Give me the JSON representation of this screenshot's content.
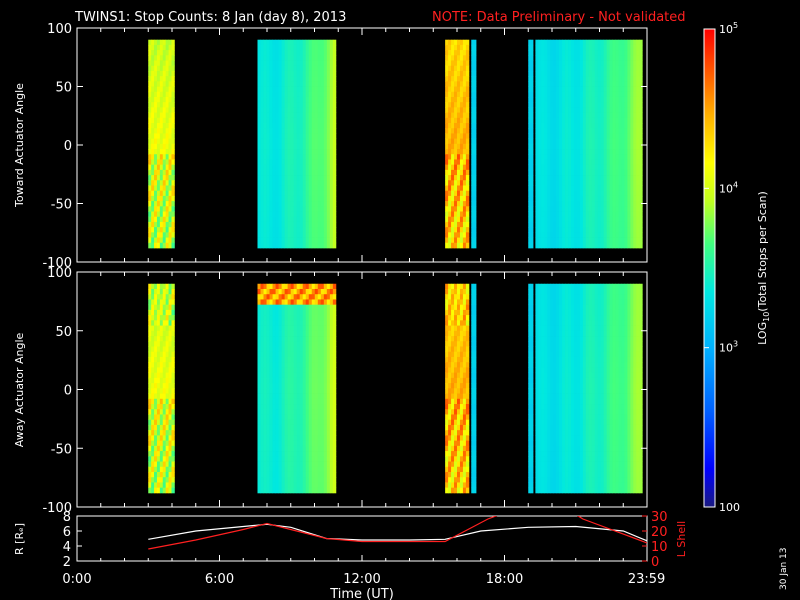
{
  "header": {
    "title": "TWINS1: Stop Counts:  8 Jan (day   8), 2013",
    "note": "NOTE: Data Preliminary - Not validated",
    "title_color": "#ffffff",
    "note_color": "#ff2020"
  },
  "footer_date": "30 Jan 13",
  "chart_data": [
    {
      "type": "heatmap",
      "panel": "toward",
      "ylabel": "Toward Actuator Angle",
      "ylim": [
        -100,
        100
      ],
      "yticks": [
        100,
        50,
        0,
        -50,
        -100
      ],
      "data_angle_range": [
        -88,
        90
      ],
      "data_blocks_hours": [
        {
          "start": 3.0,
          "end": 4.1,
          "log_level": 3.95,
          "pattern": "mixed_high"
        },
        {
          "start": 7.6,
          "end": 10.9,
          "log_level": 3.35,
          "pattern": "bands_rising"
        },
        {
          "start": 15.5,
          "end": 16.5,
          "log_level": 4.3,
          "pattern": "mixed_high"
        },
        {
          "start": 16.6,
          "end": 16.8,
          "log_level": 3.2,
          "pattern": "uniform"
        },
        {
          "start": 19.0,
          "end": 19.2,
          "log_level": 3.2,
          "pattern": "uniform"
        },
        {
          "start": 19.3,
          "end": 23.8,
          "log_level": 3.3,
          "pattern": "bands_rising"
        }
      ]
    },
    {
      "type": "heatmap",
      "panel": "away",
      "ylabel": "Away Actuator Angle",
      "ylim": [
        -100,
        100
      ],
      "yticks": [
        100,
        50,
        0,
        -50,
        -100
      ],
      "data_angle_range": [
        -88,
        90
      ],
      "data_blocks_hours": [
        {
          "start": 3.0,
          "end": 4.1,
          "log_level": 3.95,
          "pattern": "mixed_high"
        },
        {
          "start": 7.6,
          "end": 10.9,
          "log_level": 3.4,
          "pattern": "bands_rising_top_hot"
        },
        {
          "start": 15.5,
          "end": 16.5,
          "log_level": 4.3,
          "pattern": "mixed_high"
        },
        {
          "start": 16.6,
          "end": 16.8,
          "log_level": 3.2,
          "pattern": "uniform"
        },
        {
          "start": 19.0,
          "end": 19.2,
          "log_level": 3.2,
          "pattern": "uniform"
        },
        {
          "start": 19.3,
          "end": 23.8,
          "log_level": 3.3,
          "pattern": "bands_rising"
        }
      ]
    },
    {
      "type": "line",
      "panel": "ephemeris",
      "xlabel": "Time (UT)",
      "xlim": [
        0,
        24
      ],
      "xtick_labels": [
        "0:00",
        "6:00",
        "12:00",
        "18:00",
        "23:59"
      ],
      "xtick_hours": [
        0,
        6,
        12,
        18,
        23.983
      ],
      "ylabel_left": "R [Rₑ]",
      "ylim_left": [
        2,
        8
      ],
      "yticks_left": [
        2,
        4,
        6,
        8
      ],
      "ylabel_right": "L Shell",
      "ylim_right": [
        0,
        30
      ],
      "yticks_right": [
        0,
        10,
        20,
        30
      ],
      "series": [
        {
          "axis": "left",
          "color": "#ffffff",
          "x": [
            3.0,
            5.0,
            7.0,
            8.0,
            9.0,
            10.5,
            12.0,
            14.0,
            15.5,
            17.0,
            19.0,
            21.0,
            23.0,
            24.0
          ],
          "values": [
            4.9,
            6.0,
            6.6,
            6.9,
            6.5,
            5.0,
            4.8,
            4.8,
            4.9,
            6.0,
            6.5,
            6.6,
            6.0,
            4.7
          ]
        },
        {
          "axis": "right",
          "color": "#ff2020",
          "x": [
            3.0,
            5.0,
            7.0,
            8.0,
            10.5,
            12.0,
            14.0,
            15.5,
            17.3,
            17.8,
            21.0,
            21.3,
            23.0,
            24.0
          ],
          "values": [
            8.0,
            14.0,
            21.0,
            25.0,
            15.0,
            13.0,
            13.0,
            13.0,
            28.0,
            31.0,
            31.0,
            28.0,
            18.0,
            12.0
          ]
        }
      ]
    }
  ],
  "colorbar": {
    "label": "LOG",
    "label_sub": "10",
    "label_rest": "(Total Stops per Scan)",
    "range_log": [
      2,
      5
    ],
    "tick_labels": [
      {
        "base": "10",
        "exp": "5",
        "log": 5
      },
      {
        "base": "10",
        "exp": "4",
        "log": 4
      },
      {
        "base": "10",
        "exp": "3",
        "log": 3
      },
      {
        "base": "100",
        "exp": "",
        "log": 2
      }
    ]
  }
}
